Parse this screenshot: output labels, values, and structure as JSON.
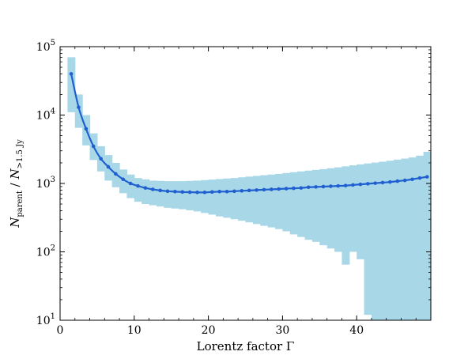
{
  "chart_data": {
    "type": "line",
    "title": "",
    "xlabel": "Lorentz factor Γ",
    "ylabel_parts": {
      "base": "N",
      "sub1": "parent",
      "slash": " / ",
      "base2": "N",
      "sub2": ">1.5 Jy"
    },
    "xlim": [
      0,
      50
    ],
    "ylim": [
      10,
      100000
    ],
    "yscale": "log",
    "x_ticks": [
      0,
      10,
      20,
      30,
      40
    ],
    "x_tick_labels": [
      "0",
      "10",
      "20",
      "30",
      "40"
    ],
    "y_ticks": [
      10,
      100,
      1000,
      10000,
      100000
    ],
    "y_tick_labels": [
      {
        "base": "10",
        "exp": "1"
      },
      {
        "base": "10",
        "exp": "2"
      },
      {
        "base": "10",
        "exp": "3"
      },
      {
        "base": "10",
        "exp": "4"
      },
      {
        "base": "10",
        "exp": "5"
      }
    ],
    "grid": false,
    "colors": {
      "line": "#1f5fd0",
      "band": "#a8d8e8"
    },
    "series": [
      {
        "x": [
          1.5,
          2.5,
          3.5,
          4.5,
          5.5,
          6.5,
          7.5,
          8.5,
          9.5,
          10.5,
          11.5,
          12.5,
          13.5,
          14.5,
          15.5,
          16.5,
          17.5,
          18.5,
          19.5,
          20.5,
          21.5,
          22.5,
          23.5,
          24.5,
          25.5,
          26.5,
          27.5,
          28.5,
          29.5,
          30.5,
          31.5,
          32.5,
          33.5,
          34.5,
          35.5,
          36.5,
          37.5,
          38.5,
          39.5,
          40.5,
          41.5,
          42.5,
          43.5,
          44.5,
          45.5,
          46.5,
          47.5,
          48.5,
          49.5
        ],
        "values": [
          40000,
          13000,
          6300,
          3500,
          2300,
          1750,
          1380,
          1150,
          1000,
          920,
          860,
          820,
          790,
          770,
          760,
          750,
          745,
          740,
          740,
          750,
          760,
          760,
          770,
          780,
          790,
          800,
          810,
          820,
          830,
          840,
          850,
          860,
          880,
          890,
          900,
          910,
          920,
          930,
          950,
          970,
          990,
          1010,
          1030,
          1050,
          1080,
          1110,
          1150,
          1200,
          1250
        ],
        "band_upper": [
          70000,
          20000,
          10000,
          5400,
          3500,
          2600,
          2000,
          1600,
          1350,
          1200,
          1150,
          1100,
          1090,
          1080,
          1080,
          1080,
          1090,
          1100,
          1120,
          1140,
          1160,
          1180,
          1200,
          1230,
          1260,
          1290,
          1320,
          1350,
          1380,
          1420,
          1460,
          1500,
          1540,
          1580,
          1620,
          1670,
          1720,
          1780,
          1840,
          1900,
          1960,
          2020,
          2080,
          2150,
          2230,
          2310,
          2400,
          2550,
          2900
        ],
        "band_lower": [
          11000,
          6500,
          3600,
          2200,
          1500,
          1100,
          880,
          720,
          610,
          540,
          500,
          480,
          460,
          440,
          430,
          420,
          405,
          390,
          370,
          350,
          330,
          315,
          300,
          285,
          270,
          255,
          240,
          228,
          215,
          200,
          180,
          165,
          150,
          140,
          125,
          112,
          100,
          65,
          100,
          78,
          12,
          10,
          10,
          10,
          10,
          10,
          10,
          10,
          10
        ]
      }
    ]
  }
}
